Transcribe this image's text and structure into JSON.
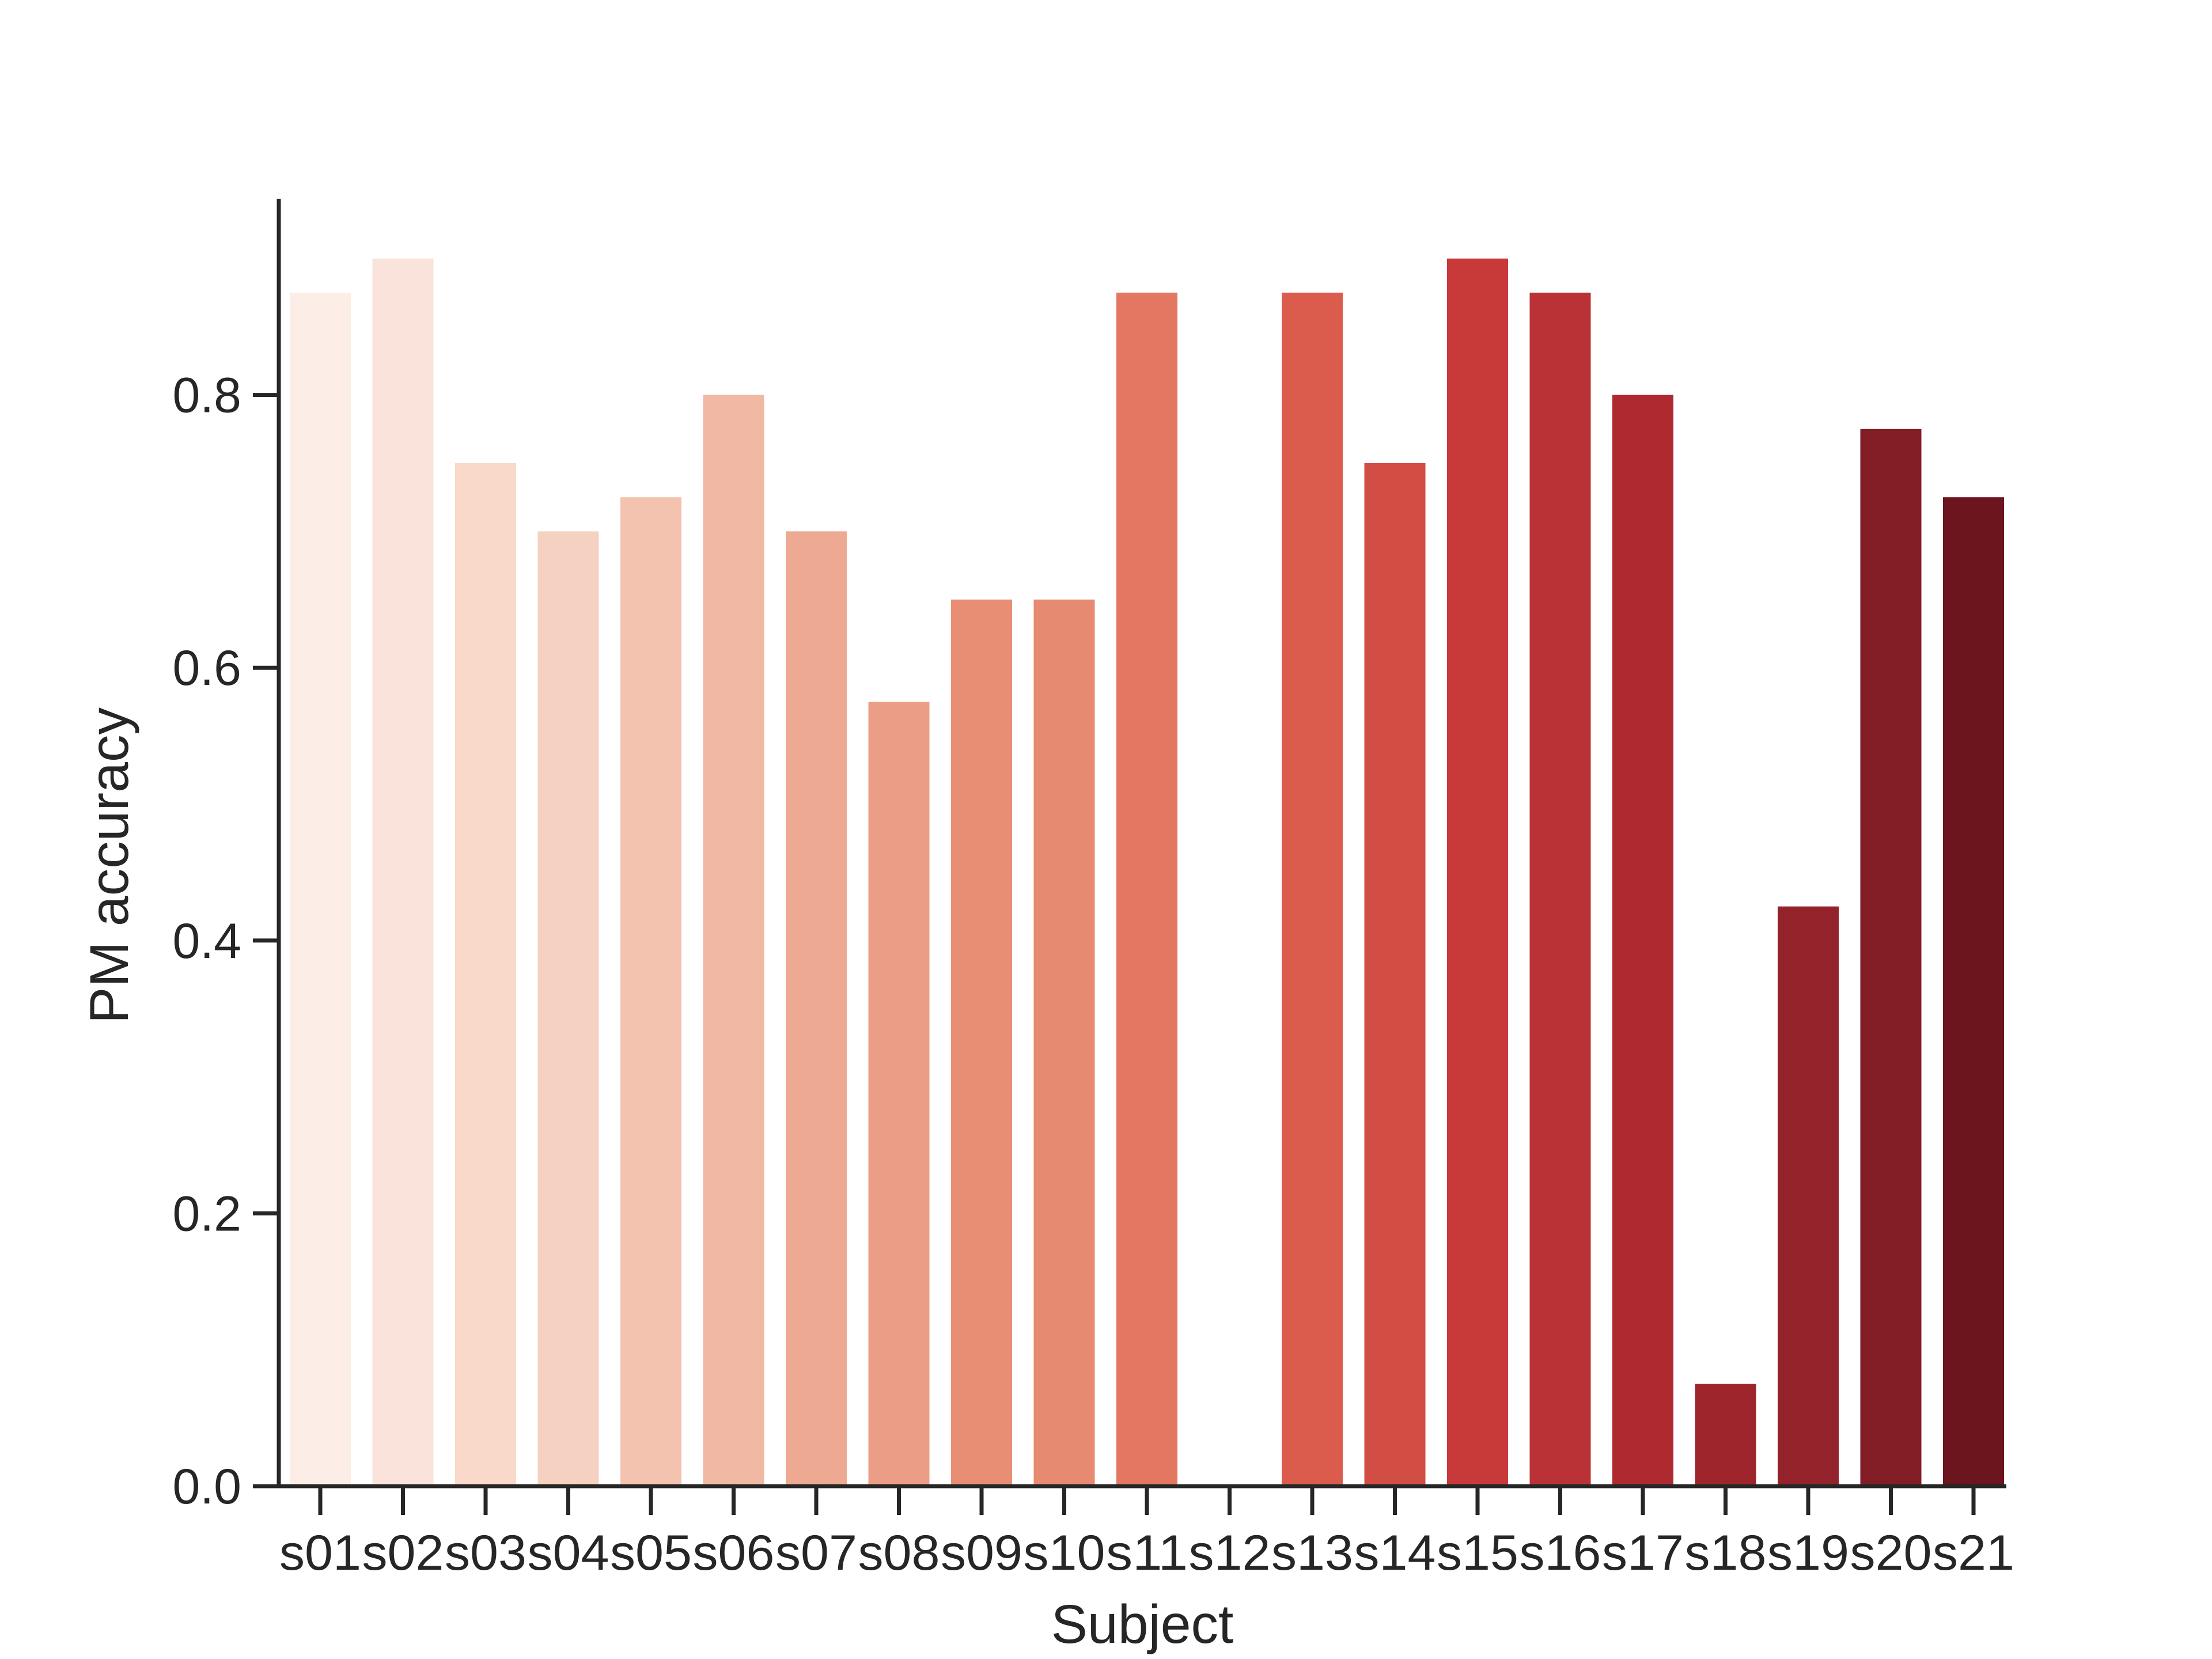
{
  "chart_data": {
    "type": "bar",
    "xlabel": "Subject",
    "ylabel": "PM accuracy",
    "categories": [
      "s01",
      "s02",
      "s03",
      "s04",
      "s05",
      "s06",
      "s07",
      "s08",
      "s09",
      "s10",
      "s11",
      "s12",
      "s13",
      "s14",
      "s15",
      "s16",
      "s17",
      "s18",
      "s19",
      "s20",
      "s21"
    ],
    "values": [
      0.875,
      0.9,
      0.75,
      0.7,
      0.725,
      0.8,
      0.7,
      0.575,
      0.65,
      0.65,
      0.875,
      0.0,
      0.875,
      0.75,
      0.9,
      0.875,
      0.8,
      0.075,
      0.425,
      0.775,
      0.725
    ],
    "colors": [
      "#fcede6",
      "#fae3da",
      "#f8d9ca",
      "#f5d1c2",
      "#f3c3b0",
      "#f1b9a4",
      "#eea992",
      "#eb9e85",
      "#e88e75",
      "#e78a72",
      "#e37761",
      "#dd6550",
      "#db5c4c",
      "#d24d43",
      "#c83a39",
      "#bb3236",
      "#ae2930",
      "#9f252d",
      "#94222b",
      "#821c25",
      "#6d151f"
    ],
    "ylim": [
      0,
      0.95
    ],
    "yticks": [
      0.0,
      0.2,
      0.4,
      0.6,
      0.8
    ],
    "ytick_labels": [
      "0.0",
      "0.2",
      "0.4",
      "0.6",
      "0.8"
    ],
    "grid": false,
    "legend": "none"
  }
}
